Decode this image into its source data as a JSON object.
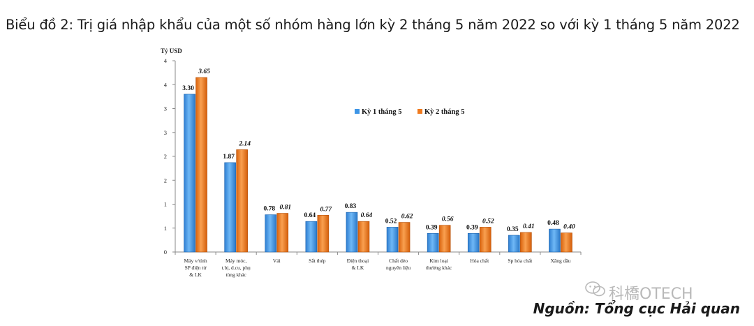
{
  "page_title": "Biểu đồ 2: Trị giá nhập khẩu của một số nhóm hàng lớn kỳ 2 tháng 5 năm 2022 so với kỳ 1 tháng 5 năm 2022",
  "source_note": "Nguồn: Tổng cục Hải quan",
  "watermark_text": "科橋OTECH",
  "chart_data": {
    "type": "bar",
    "title": "",
    "ylabel": "Tỷ USD",
    "ylim": [
      0,
      4
    ],
    "y_ticks": [
      "0",
      "1",
      "1",
      "2",
      "2",
      "3",
      "3",
      "4",
      "4"
    ],
    "grid": false,
    "legend_position": "top-right",
    "categories": [
      [
        "Máy v/tính",
        "SP điện tử",
        "& LK"
      ],
      [
        "Máy móc,",
        "t.bị, d.cu, phụ",
        "tùng khác"
      ],
      [
        "Vải"
      ],
      [
        "Sắt thép"
      ],
      [
        "Điện thoại",
        "& LK"
      ],
      [
        "Chất dẻo",
        "nguyên liệu"
      ],
      [
        "Kim loại",
        "thường khác"
      ],
      [
        "Hóa chất"
      ],
      [
        "Sp hóa chất"
      ],
      [
        "Xăng dầu"
      ]
    ],
    "series": [
      {
        "name": "Kỳ 1 tháng 5",
        "color": "#3d95e6",
        "values": [
          3.3,
          1.87,
          0.78,
          0.64,
          0.83,
          0.52,
          0.39,
          0.39,
          0.35,
          0.48
        ],
        "labels": [
          "3.30",
          "1.87",
          "0.78",
          "0.64",
          "0.83",
          "0.52",
          "0.39",
          "0.39",
          "0.35",
          "0.48"
        ]
      },
      {
        "name": "Kỳ 2 tháng 5",
        "color": "#f07a1e",
        "values": [
          3.65,
          2.14,
          0.81,
          0.77,
          0.64,
          0.62,
          0.56,
          0.52,
          0.41,
          0.4
        ],
        "labels": [
          "3.65",
          "2.14",
          "0.81",
          "0.77",
          "0.64",
          "0.62",
          "0.56",
          "0.52",
          "0.41",
          "0.40"
        ]
      }
    ]
  }
}
